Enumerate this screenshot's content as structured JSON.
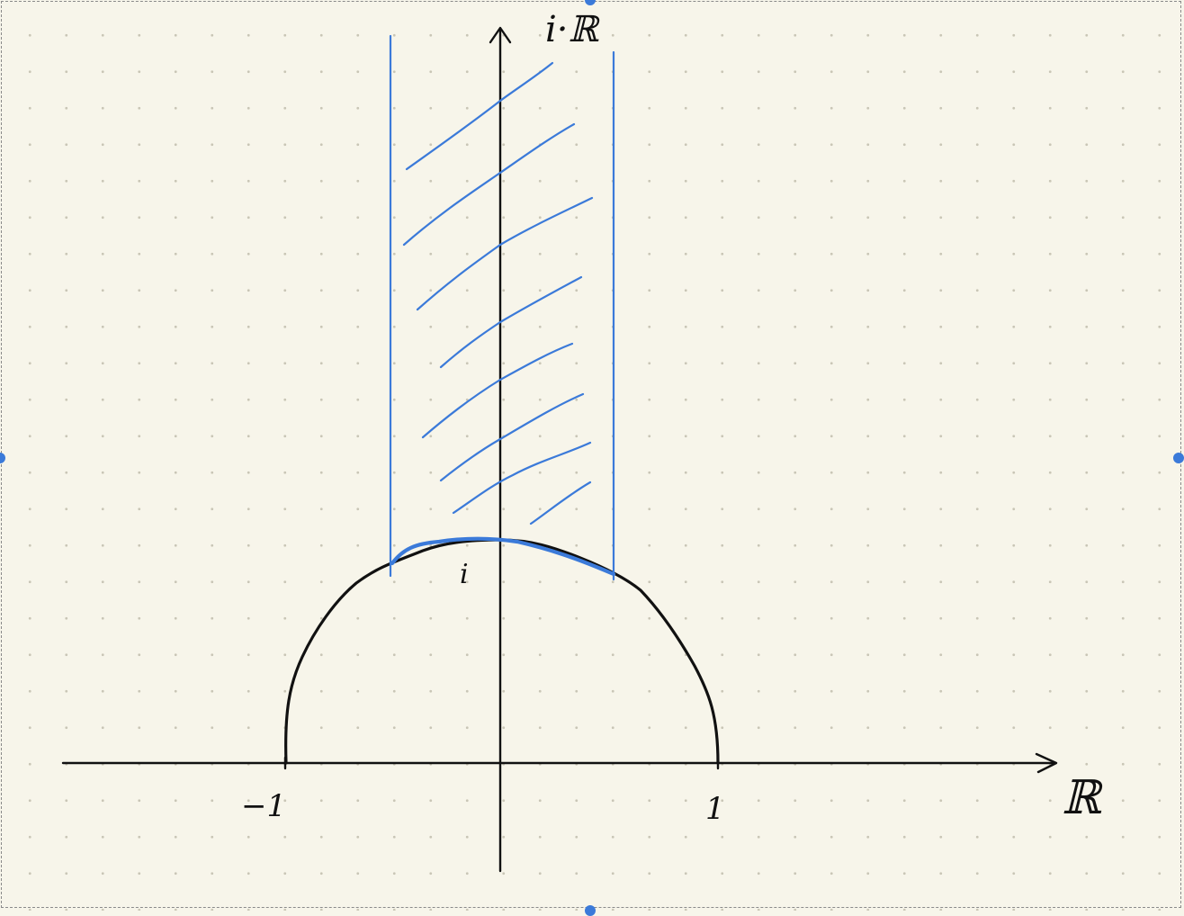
{
  "labels": {
    "imag_axis": "i·ℝ",
    "real_axis": "ℝ",
    "minus_one": "−1",
    "one": "1",
    "i_point": "i"
  },
  "colors": {
    "ink": "#111111",
    "highlight": "#3b7ad9",
    "paper": "#f7f5ea",
    "grid_dot": "#c9c6b6",
    "selection_handle": "#3b7ad9"
  }
}
